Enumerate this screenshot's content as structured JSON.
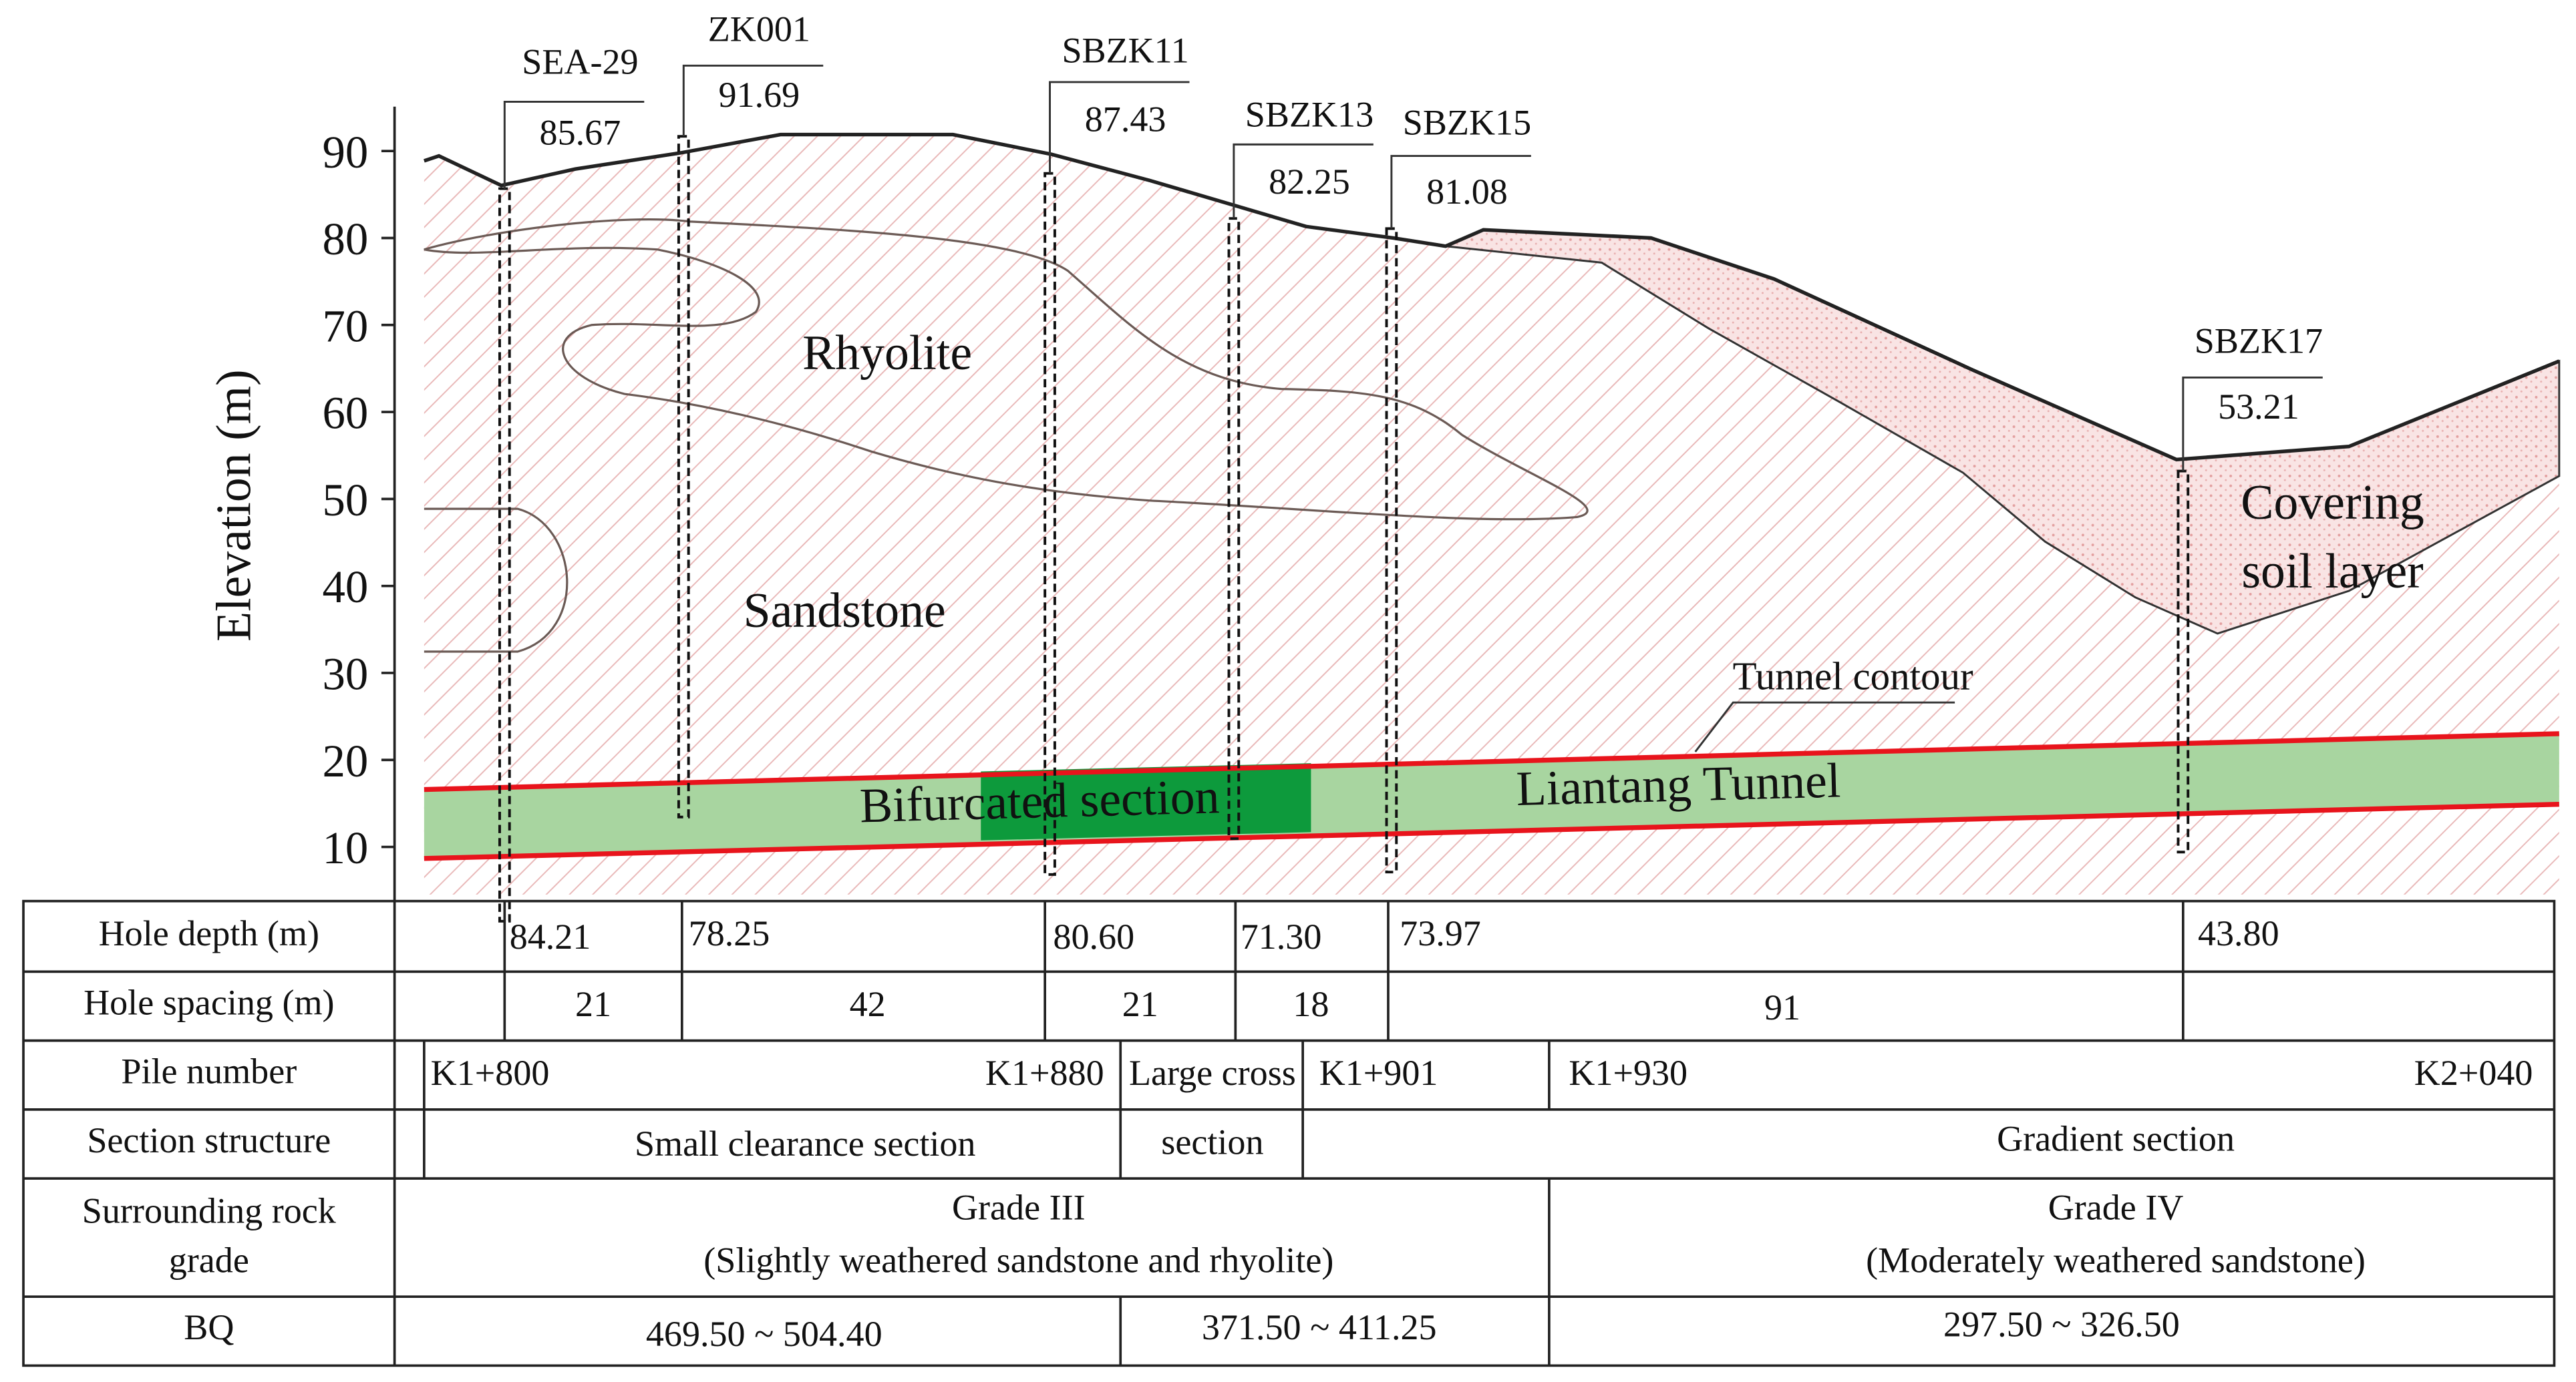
{
  "axis": {
    "label": "Elevation (m)",
    "ticks": [
      10,
      20,
      30,
      40,
      50,
      60,
      70,
      80,
      90
    ]
  },
  "boreholes": [
    {
      "name": "SEA-29",
      "elevation": "85.67",
      "depth": "84.21"
    },
    {
      "name": "ZK001",
      "elevation": "91.69",
      "depth": "78.25"
    },
    {
      "name": "SBZK11",
      "elevation": "87.43",
      "depth": "80.60"
    },
    {
      "name": "SBZK13",
      "elevation": "82.25",
      "depth": "71.30"
    },
    {
      "name": "SBZK15",
      "elevation": "81.08",
      "depth": "73.97"
    },
    {
      "name": "SBZK17",
      "elevation": "53.21",
      "depth": "43.80"
    }
  ],
  "labels": {
    "rhyolite": "Rhyolite",
    "sandstone": "Sandstone",
    "covering": [
      "Covering",
      "soil layer"
    ],
    "tunnel_contour": "Tunnel contour",
    "bifurcated": "Bifurcated section",
    "tunnel": "Liantang Tunnel"
  },
  "table": {
    "headers": [
      "Hole depth (m)",
      "Hole spacing (m)",
      "Pile number",
      "Section structure",
      [
        "Surrounding rock",
        "grade"
      ],
      "BQ"
    ],
    "spacing": [
      "21",
      "42",
      "21",
      "18",
      "91"
    ],
    "pile": [
      "K1+800",
      "K1+880",
      "Large cross",
      "K1+901",
      "K1+930",
      "K2+040"
    ],
    "structure": [
      "Small clearance section",
      "section",
      "Gradient section"
    ],
    "rock": [
      [
        "Grade III",
        "(Slightly weathered sandstone and rhyolite)"
      ],
      [
        "Grade IV",
        "(Moderately weathered sandstone)"
      ]
    ],
    "bq": [
      "469.50 ~ 504.40",
      "371.50 ~ 411.25",
      "297.50 ~ 326.50"
    ]
  }
}
